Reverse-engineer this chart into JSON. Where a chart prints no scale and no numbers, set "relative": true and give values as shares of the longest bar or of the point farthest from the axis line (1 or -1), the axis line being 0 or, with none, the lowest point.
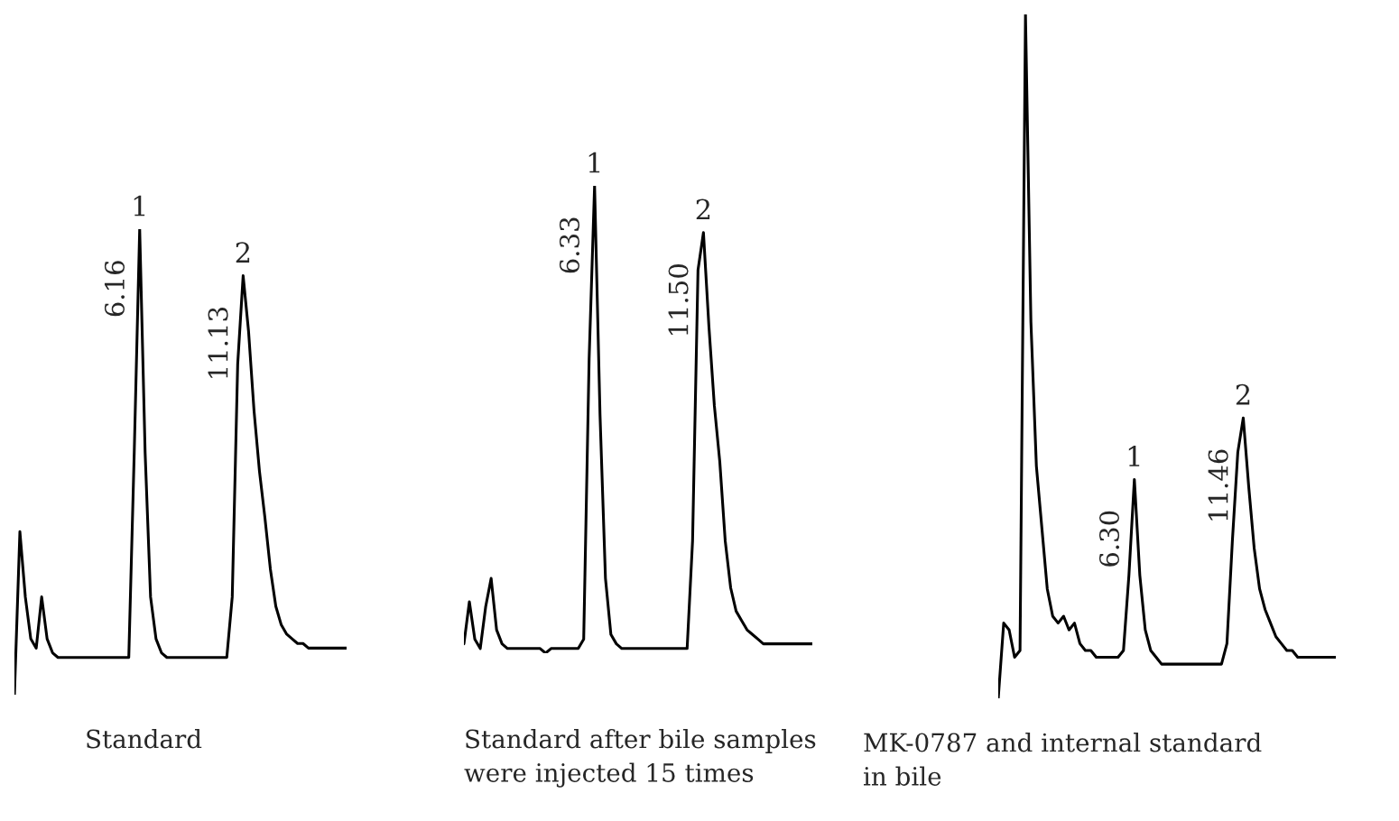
{
  "chart_data": [
    {
      "type": "line",
      "relative": true,
      "title": "Standard",
      "annotations": [
        "1",
        "6.16",
        "2",
        "11.13"
      ],
      "categories": [
        null,
        null,
        null,
        null,
        null,
        null,
        null,
        null,
        null,
        null,
        null,
        null,
        null,
        null,
        null,
        null,
        null,
        null,
        null,
        null,
        null,
        null,
        null,
        null,
        null,
        null,
        null,
        null,
        null,
        null,
        null,
        null,
        null,
        null,
        null,
        null,
        null,
        null,
        null,
        null,
        null,
        null,
        null,
        null,
        null,
        null,
        null,
        null,
        null,
        null,
        null,
        null,
        null,
        null,
        null,
        null,
        null,
        null,
        null,
        null,
        null,
        null
      ],
      "series": [
        {
          "color": "#000000",
          "values": [
            0,
            0.35,
            0.21,
            0.12,
            0.1,
            0.21,
            0.12,
            0.09,
            0.08,
            0.08,
            0.08,
            0.08,
            0.08,
            0.08,
            0.08,
            0.08,
            0.08,
            0.08,
            0.08,
            0.08,
            0.08,
            0.08,
            0.52,
            1.0,
            0.52,
            0.21,
            0.12,
            0.09,
            0.08,
            0.08,
            0.08,
            0.08,
            0.08,
            0.08,
            0.08,
            0.08,
            0.08,
            0.08,
            0.08,
            0.08,
            0.21,
            0.71,
            0.9,
            0.78,
            0.61,
            0.48,
            0.38,
            0.27,
            0.19,
            0.15,
            0.13,
            0.12,
            0.11,
            0.11,
            0.1,
            0.1,
            0.1,
            0.1,
            0.1,
            0.1,
            0.1,
            0.1
          ]
        }
      ]
    },
    {
      "type": "line",
      "relative": true,
      "title": "Standard after bile samples\nwere injected 15 times",
      "annotations": [
        "1",
        "6.33",
        "2",
        "11.50"
      ],
      "categories": [
        null,
        null,
        null,
        null,
        null,
        null,
        null,
        null,
        null,
        null,
        null,
        null,
        null,
        null,
        null,
        null,
        null,
        null,
        null,
        null,
        null,
        null,
        null,
        null,
        null,
        null,
        null,
        null,
        null,
        null,
        null,
        null,
        null,
        null,
        null,
        null,
        null,
        null,
        null,
        null,
        null,
        null,
        null,
        null,
        null,
        null,
        null,
        null,
        null,
        null,
        null,
        null,
        null,
        null,
        null,
        null,
        null,
        null,
        null,
        null,
        null,
        null,
        null,
        null,
        null
      ],
      "series": [
        {
          "color": "#000000",
          "values": [
            0.02,
            0.11,
            0.03,
            0.01,
            0.1,
            0.16,
            0.05,
            0.02,
            0.01,
            0.01,
            0.01,
            0.01,
            0.01,
            0.01,
            0.01,
            0,
            0.01,
            0.01,
            0.01,
            0.01,
            0.01,
            0.01,
            0.03,
            0.63,
            1.0,
            0.51,
            0.16,
            0.04,
            0.02,
            0.01,
            0.01,
            0.01,
            0.01,
            0.01,
            0.01,
            0.01,
            0.01,
            0.01,
            0.01,
            0.01,
            0.01,
            0.01,
            0.24,
            0.82,
            0.9,
            0.7,
            0.53,
            0.41,
            0.24,
            0.14,
            0.09,
            0.07,
            0.05,
            0.04,
            0.03,
            0.02,
            0.02,
            0.02,
            0.02,
            0.02,
            0.02,
            0.02,
            0.02,
            0.02,
            0.02
          ]
        }
      ]
    },
    {
      "type": "line",
      "relative": true,
      "title": "MK-0787 and internal standard\nin bile",
      "annotations": [
        "1",
        "6.30",
        "2",
        "11.46"
      ],
      "categories": [
        null,
        null,
        null,
        null,
        null,
        null,
        null,
        null,
        null,
        null,
        null,
        null,
        null,
        null,
        null,
        null,
        null,
        null,
        null,
        null,
        null,
        null,
        null,
        null,
        null,
        null,
        null,
        null,
        null,
        null,
        null,
        null,
        null,
        null,
        null,
        null,
        null,
        null,
        null,
        null,
        null,
        null,
        null,
        null,
        null,
        null,
        null,
        null,
        null,
        null,
        null,
        null,
        null,
        null,
        null,
        null,
        null,
        null,
        null,
        null,
        null,
        null,
        null
      ],
      "series": [
        {
          "color": "#000000",
          "values": [
            0,
            0.11,
            0.1,
            0.06,
            0.07,
            1.0,
            0.55,
            0.34,
            0.25,
            0.16,
            0.12,
            0.11,
            0.12,
            0.1,
            0.11,
            0.08,
            0.07,
            0.07,
            0.06,
            0.06,
            0.06,
            0.06,
            0.06,
            0.07,
            0.18,
            0.32,
            0.18,
            0.1,
            0.07,
            0.06,
            0.05,
            0.05,
            0.05,
            0.05,
            0.05,
            0.05,
            0.05,
            0.05,
            0.05,
            0.05,
            0.05,
            0.05,
            0.08,
            0.23,
            0.36,
            0.41,
            0.31,
            0.22,
            0.16,
            0.13,
            0.11,
            0.09,
            0.08,
            0.07,
            0.07,
            0.06,
            0.06,
            0.06,
            0.06,
            0.06,
            0.06,
            0.06,
            0.06
          ]
        }
      ]
    }
  ]
}
